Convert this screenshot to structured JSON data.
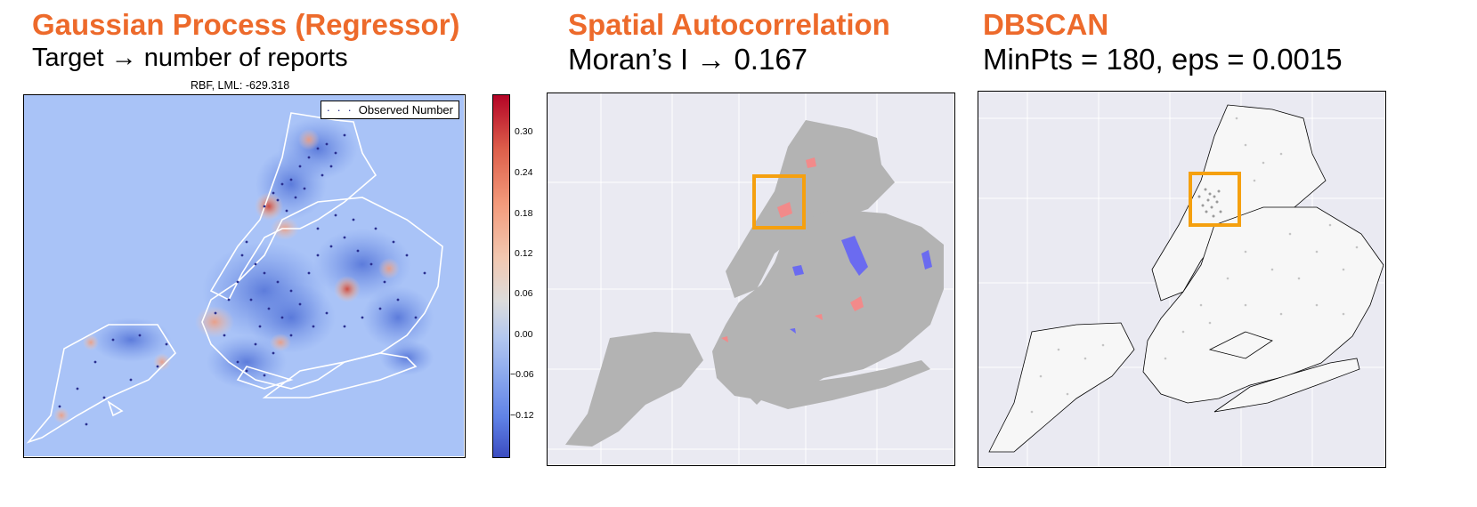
{
  "panels": {
    "gp": {
      "title": "Gaussian Process (Regressor)",
      "subtitle": "Target → number of reports",
      "plot_title": "RBF, LML: -629.318",
      "legend_label": "Observed Number"
    },
    "moran": {
      "title": "Spatial Autocorrelation",
      "subtitle": "Moran’s I → 0.167"
    },
    "dbscan": {
      "title": "DBSCAN",
      "subtitle": "MinPts = 180, eps = 0.0015"
    }
  },
  "colorbar": {
    "ticks": [
      "0.30",
      "0.24",
      "0.18",
      "0.12",
      "0.06",
      "0.00",
      "−0.06",
      "−0.12"
    ]
  },
  "colors": {
    "title": "#ED6A2B",
    "highlight_box": "#F5A00F",
    "cold": "#3B4CC0",
    "hot": "#C0282E"
  }
}
